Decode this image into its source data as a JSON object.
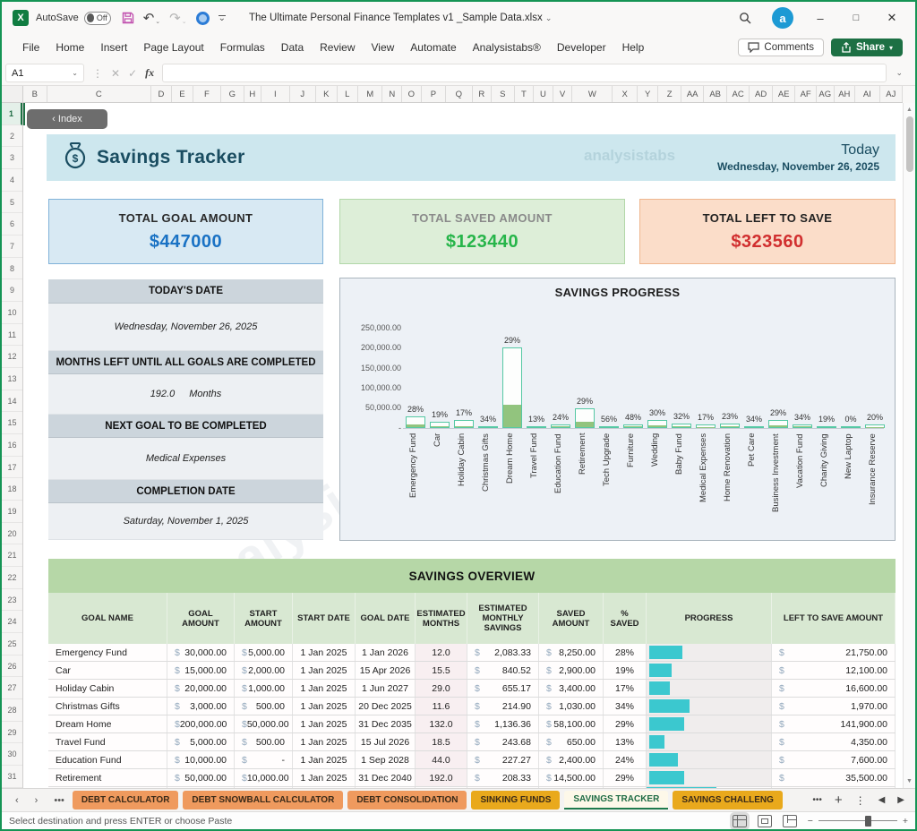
{
  "window": {
    "title": "The Ultimate Personal Finance Templates v1 _Sample Data.xlsx",
    "autosave_label": "AutoSave",
    "autosave_state": "Off"
  },
  "ribbon": {
    "tabs": [
      "File",
      "Home",
      "Insert",
      "Page Layout",
      "Formulas",
      "Data",
      "Review",
      "View",
      "Automate",
      "Analysistabs®",
      "Developer",
      "Help"
    ],
    "comments_label": "Comments",
    "share_label": "Share"
  },
  "formula_bar": {
    "cell_ref": "A1"
  },
  "grid": {
    "columns": [
      "B",
      "C",
      "D",
      "E",
      "F",
      "G",
      "H",
      "I",
      "J",
      "K",
      "L",
      "M",
      "N",
      "O",
      "P",
      "Q",
      "R",
      "S",
      "T",
      "U",
      "V",
      "W",
      "X",
      "Y",
      "Z",
      "AA",
      "AB",
      "AC",
      "AD",
      "AE",
      "AF",
      "AG",
      "AH",
      "AI",
      "AJ"
    ],
    "rows": [
      "1",
      "2",
      "3",
      "4",
      "5",
      "6",
      "7",
      "8",
      "9",
      "10",
      "11",
      "12",
      "13",
      "14",
      "15",
      "16",
      "17",
      "18",
      "19",
      "20",
      "21",
      "22",
      "23",
      "24",
      "25",
      "26",
      "27",
      "28",
      "29",
      "30",
      "31"
    ]
  },
  "sheet": {
    "index_button": "‹ Index",
    "header": {
      "title": "Savings Tracker",
      "today_label": "Today",
      "today_date": "Wednesday, November 26, 2025",
      "watermark": "analysistabs"
    },
    "cards": [
      {
        "label": "TOTAL GOAL AMOUNT",
        "value": "$447000",
        "bg": "#d8e9f3",
        "border": "#7fb2d9",
        "label_color": "#2a2a2a",
        "value_color": "#1a72c4"
      },
      {
        "label": "TOTAL SAVED AMOUNT",
        "value": "$123440",
        "bg": "#ddeed8",
        "border": "#b2d7a8",
        "label_color": "#8a8a8a",
        "value_color": "#27b54a"
      },
      {
        "label": "TOTAL LEFT TO SAVE",
        "value": "$323560",
        "bg": "#fbddc9",
        "border": "#efb68e",
        "label_color": "#222222",
        "value_color": "#d12f2f"
      }
    ],
    "info_panel": [
      {
        "label": "TODAY'S DATE",
        "value": "Wednesday, November 26, 2025",
        "unit": ""
      },
      {
        "label": "MONTHS LEFT UNTIL ALL GOALS ARE COMPLETED",
        "value": "192.0",
        "unit": "Months"
      },
      {
        "label": "NEXT GOAL TO BE COMPLETED",
        "value": "Medical Expenses",
        "unit": ""
      },
      {
        "label": "COMPLETION DATE",
        "value": "Saturday, November 1, 2025",
        "unit": ""
      }
    ],
    "table": {
      "title": "SAVINGS OVERVIEW",
      "columns": [
        "GOAL NAME",
        "GOAL AMOUNT",
        "START AMOUNT",
        "START DATE",
        "GOAL DATE",
        "ESTIMATED MONTHS",
        "ESTIMATED MONTHLY SAVINGS",
        "SAVED AMOUNT",
        "% SAVED",
        "PROGRESS",
        "LEFT TO SAVE AMOUNT"
      ],
      "rows": [
        {
          "goal_name": "Emergency Fund",
          "goal_amount": "30,000.00",
          "start_amount": "5,000.00",
          "start_date": "1 Jan 2025",
          "goal_date": "1 Jan 2026",
          "est_months": "12.0",
          "est_monthly": "2,083.33",
          "saved_amount": "8,250.00",
          "pct_saved": "28%",
          "progress_pct": 28,
          "left_to_save": "21,750.00"
        },
        {
          "goal_name": "Car",
          "goal_amount": "15,000.00",
          "start_amount": "2,000.00",
          "start_date": "1 Jan 2025",
          "goal_date": "15 Apr 2026",
          "est_months": "15.5",
          "est_monthly": "840.52",
          "saved_amount": "2,900.00",
          "pct_saved": "19%",
          "progress_pct": 19,
          "left_to_save": "12,100.00"
        },
        {
          "goal_name": "Holiday Cabin",
          "goal_amount": "20,000.00",
          "start_amount": "1,000.00",
          "start_date": "1 Jan 2025",
          "goal_date": "1 Jun 2027",
          "est_months": "29.0",
          "est_monthly": "655.17",
          "saved_amount": "3,400.00",
          "pct_saved": "17%",
          "progress_pct": 17,
          "left_to_save": "16,600.00"
        },
        {
          "goal_name": "Christmas Gifts",
          "goal_amount": "3,000.00",
          "start_amount": "500.00",
          "start_date": "1 Jan 2025",
          "goal_date": "20 Dec 2025",
          "est_months": "11.6",
          "est_monthly": "214.90",
          "saved_amount": "1,030.00",
          "pct_saved": "34%",
          "progress_pct": 34,
          "left_to_save": "1,970.00"
        },
        {
          "goal_name": "Dream Home",
          "goal_amount": "200,000.00",
          "start_amount": "50,000.00",
          "start_date": "1 Jan 2025",
          "goal_date": "31 Dec 2035",
          "est_months": "132.0",
          "est_monthly": "1,136.36",
          "saved_amount": "58,100.00",
          "pct_saved": "29%",
          "progress_pct": 29,
          "left_to_save": "141,900.00"
        },
        {
          "goal_name": "Travel Fund",
          "goal_amount": "5,000.00",
          "start_amount": "500.00",
          "start_date": "1 Jan 2025",
          "goal_date": "15 Jul 2026",
          "est_months": "18.5",
          "est_monthly": "243.68",
          "saved_amount": "650.00",
          "pct_saved": "13%",
          "progress_pct": 13,
          "left_to_save": "4,350.00"
        },
        {
          "goal_name": "Education Fund",
          "goal_amount": "10,000.00",
          "start_amount": "-",
          "start_date": "1 Jan 2025",
          "goal_date": "1 Sep 2028",
          "est_months": "44.0",
          "est_monthly": "227.27",
          "saved_amount": "2,400.00",
          "pct_saved": "24%",
          "progress_pct": 24,
          "left_to_save": "7,600.00"
        },
        {
          "goal_name": "Retirement",
          "goal_amount": "50,000.00",
          "start_amount": "10,000.00",
          "start_date": "1 Jan 2025",
          "goal_date": "31 Dec 2040",
          "est_months": "192.0",
          "est_monthly": "208.33",
          "saved_amount": "14,500.00",
          "pct_saved": "29%",
          "progress_pct": 29,
          "left_to_save": "35,500.00"
        }
      ],
      "partial_row_progress_pct": 56,
      "progress_color": "#3bc8cf"
    }
  },
  "chart_data": {
    "type": "bar",
    "title": "SAVINGS PROGRESS",
    "categories": [
      "Emergency Fund",
      "Car",
      "Holiday Cabin",
      "Christmas Gifts",
      "Dream Home",
      "Travel Fund",
      "Education Fund",
      "Retirement",
      "Tech Upgrade",
      "Furniture",
      "Wedding",
      "Baby Fund",
      "Medical Expenses",
      "Home Renovation",
      "Pet Care",
      "Business Investment",
      "Vacation Fund",
      "Charity Giving",
      "New Laptop",
      "Insurance Reserve"
    ],
    "series": [
      {
        "name": "Goal Amount",
        "values": [
          30000,
          15000,
          20000,
          3000,
          200000,
          5000,
          10000,
          50000,
          4000,
          8000,
          20000,
          12000,
          10000,
          12000,
          3000,
          20000,
          9000,
          5000,
          2000,
          9000
        ]
      },
      {
        "name": "% Saved",
        "values": [
          28,
          19,
          17,
          34,
          29,
          13,
          24,
          29,
          56,
          48,
          30,
          32,
          17,
          23,
          34,
          29,
          34,
          19,
          0,
          20
        ]
      }
    ],
    "xlabel": "",
    "ylabel": "",
    "yticks": [
      "250,000.00",
      "200,000.00",
      "150,000.00",
      "100,000.00",
      "50,000.00",
      "-"
    ],
    "ylim": [
      0,
      250000
    ],
    "legend": "none",
    "grid": "off",
    "bar_outline_color": "#55c8a4",
    "bar_fill_color": "#92c47e"
  },
  "sheet_tabs": {
    "tabs": [
      {
        "label": "DEBT CALCULATOR",
        "color": "#ef9a5e",
        "active": false
      },
      {
        "label": "DEBT SNOWBALL CALCULATOR",
        "color": "#ef9a5e",
        "active": false
      },
      {
        "label": "DEBT CONSOLIDATION",
        "color": "#ef9a5e",
        "active": false
      },
      {
        "label": "SINKING FUNDS",
        "color": "#e9a91c",
        "active": false
      },
      {
        "label": "SAVINGS TRACKER",
        "color": "#fdf8e9",
        "active": true
      },
      {
        "label": "SAVINGS CHALLENG",
        "color": "#e9a91c",
        "active": false
      }
    ]
  },
  "status_bar": {
    "message": "Select destination and press ENTER or choose Paste"
  }
}
